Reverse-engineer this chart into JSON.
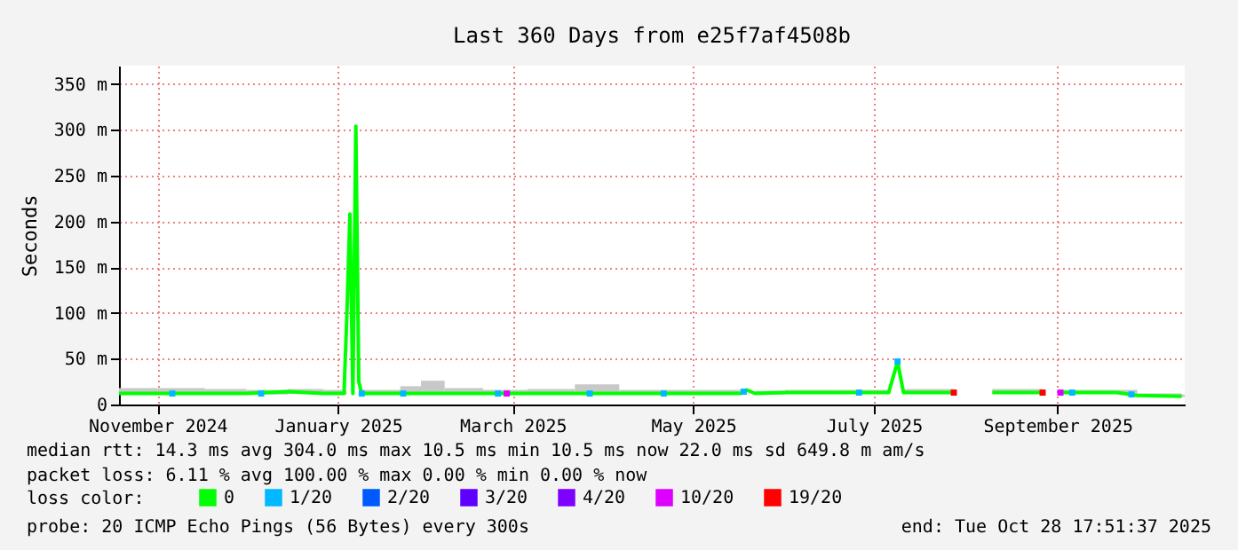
{
  "chart_data": {
    "type": "line",
    "title": "Last 360 Days from e25f7af4508b",
    "ylabel": "Seconds",
    "legend_title": "loss color:",
    "legend": "bottom",
    "grid": true,
    "xlim": [
      "2024-11-02",
      "2025-10-28"
    ],
    "xticks": [
      {
        "value": "2024-11-15",
        "label": "November 2024"
      },
      {
        "value": "2025-01-15",
        "label": "January 2025"
      },
      {
        "value": "2025-03-15",
        "label": "March 2025"
      },
      {
        "value": "2025-05-15",
        "label": "May 2025"
      },
      {
        "value": "2025-07-15",
        "label": "July 2025"
      },
      {
        "value": "2025-09-15",
        "label": "September 2025"
      }
    ],
    "ylim": [
      0,
      370
    ],
    "yticks": [
      0,
      {
        "value": 50,
        "label": "50 m"
      },
      {
        "value": 100,
        "label": "100 m"
      },
      {
        "value": 150,
        "label": "150 m"
      },
      {
        "value": 200,
        "label": "200 m"
      },
      {
        "value": 250,
        "label": "250 m"
      },
      {
        "value": 300,
        "label": "300 m"
      },
      {
        "value": 350,
        "label": "350 m"
      }
    ],
    "x": [
      "2024-11-02",
      "2024-11-15",
      "2024-12-01",
      "2024-12-15",
      "2024-12-29",
      "2025-01-10",
      "2025-01-17",
      "2025-01-18",
      "2025-01-19",
      "2025-01-20",
      "2025-01-21",
      "2025-01-22",
      "2025-01-23",
      "2025-02-05",
      "2025-02-12",
      "2025-02-20",
      "2025-03-05",
      "2025-03-20",
      "2025-04-05",
      "2025-04-20",
      "2025-05-10",
      "2025-05-31",
      "2025-06-02",
      "2025-06-05",
      "2025-06-15",
      "2025-07-01",
      "2025-07-20",
      "2025-07-23",
      "2025-07-25",
      "2025-08-11",
      "2025-08-12",
      "2025-08-24",
      "2025-09-10",
      "2025-09-11",
      "2025-09-16",
      "2025-10-05",
      "2025-10-12",
      "2025-10-27"
    ],
    "series": [
      {
        "name": "0",
        "color": "#00ff00",
        "values": [
          12,
          12,
          12,
          12,
          14,
          12,
          12,
          100,
          208,
          12,
          304,
          25,
          12,
          12,
          12,
          12,
          12,
          12,
          12,
          12,
          12,
          12,
          16,
          12,
          13,
          13,
          13,
          47,
          13,
          13,
          null,
          13,
          13,
          null,
          13,
          13,
          10,
          9
        ],
        "lower": [
          11,
          11,
          11,
          11,
          12,
          11,
          11,
          null,
          null,
          null,
          null,
          null,
          11,
          11,
          11,
          11,
          11,
          11,
          11,
          11,
          11,
          11,
          null,
          11,
          12,
          12,
          null,
          null,
          12,
          12,
          null,
          12,
          12,
          null,
          12,
          12,
          9,
          8
        ],
        "upper": [
          18,
          18,
          17,
          16,
          17,
          16,
          15,
          null,
          null,
          null,
          null,
          null,
          16,
          20,
          26,
          18,
          16,
          17,
          22,
          16,
          16,
          15,
          null,
          15,
          16,
          16,
          null,
          null,
          17,
          16,
          null,
          17,
          16,
          null,
          16,
          16,
          12,
          11
        ]
      },
      {
        "name": "1/20",
        "type": "scatter",
        "color": "#00b8ff",
        "x": [
          "2024-11-20",
          "2024-12-20",
          "2025-01-23",
          "2025-02-06",
          "2025-03-10",
          "2025-04-10",
          "2025-05-05",
          "2025-06-01",
          "2025-07-10",
          "2025-07-23",
          "2025-09-20",
          "2025-10-10"
        ],
        "values": [
          12,
          12,
          12,
          12,
          12,
          12,
          12,
          14,
          13,
          47,
          13,
          11
        ]
      },
      {
        "name": "2/20",
        "type": "scatter",
        "color": "#0059ff",
        "values": [
          null,
          null,
          null,
          null,
          null,
          null,
          null,
          null,
          null,
          null,
          null,
          null,
          null,
          null,
          null,
          null,
          null,
          null,
          null,
          null,
          null,
          null,
          null,
          null,
          null,
          null,
          null,
          null,
          null,
          null,
          null,
          null,
          null,
          null,
          null,
          null,
          null,
          null
        ]
      },
      {
        "name": "3/20",
        "type": "scatter",
        "color": "#5e00ff",
        "values": [
          null,
          null,
          null,
          null,
          null,
          null,
          null,
          null,
          null,
          null,
          null,
          null,
          null,
          null,
          null,
          null,
          null,
          null,
          null,
          null,
          null,
          null,
          null,
          null,
          null,
          null,
          null,
          null,
          null,
          null,
          null,
          null,
          null,
          null,
          null,
          null,
          null,
          null
        ]
      },
      {
        "name": "4/20",
        "type": "scatter",
        "color": "#7e00ff",
        "values": [
          null,
          null,
          null,
          null,
          null,
          null,
          null,
          null,
          null,
          null,
          null,
          null,
          null,
          null,
          null,
          null,
          null,
          null,
          null,
          null,
          null,
          null,
          null,
          null,
          null,
          null,
          null,
          null,
          null,
          null,
          null,
          null,
          null,
          null,
          null,
          null,
          null,
          null
        ]
      },
      {
        "name": "10/20",
        "type": "scatter",
        "color": "#dd00ff",
        "x": [
          "2025-03-13",
          "2025-09-16"
        ],
        "values": [
          12,
          13
        ]
      },
      {
        "name": "19/20",
        "type": "scatter",
        "color": "#ff0000",
        "x": [
          "2025-08-11",
          "2025-09-10"
        ],
        "values": [
          13,
          13
        ]
      }
    ],
    "annotations": [
      "median rtt:  14.3 ms avg  304.0 ms max  10.5 ms min  10.5 ms now  22.0 ms sd  649.8 m am/s",
      "packet loss: 6.11 % avg  100.00 % max  0.00 % min  0.00 % now",
      "probe:       20 ICMP Echo Pings (56 Bytes) every 300s",
      "end: Tue Oct 28 17:51:37 2025"
    ]
  }
}
